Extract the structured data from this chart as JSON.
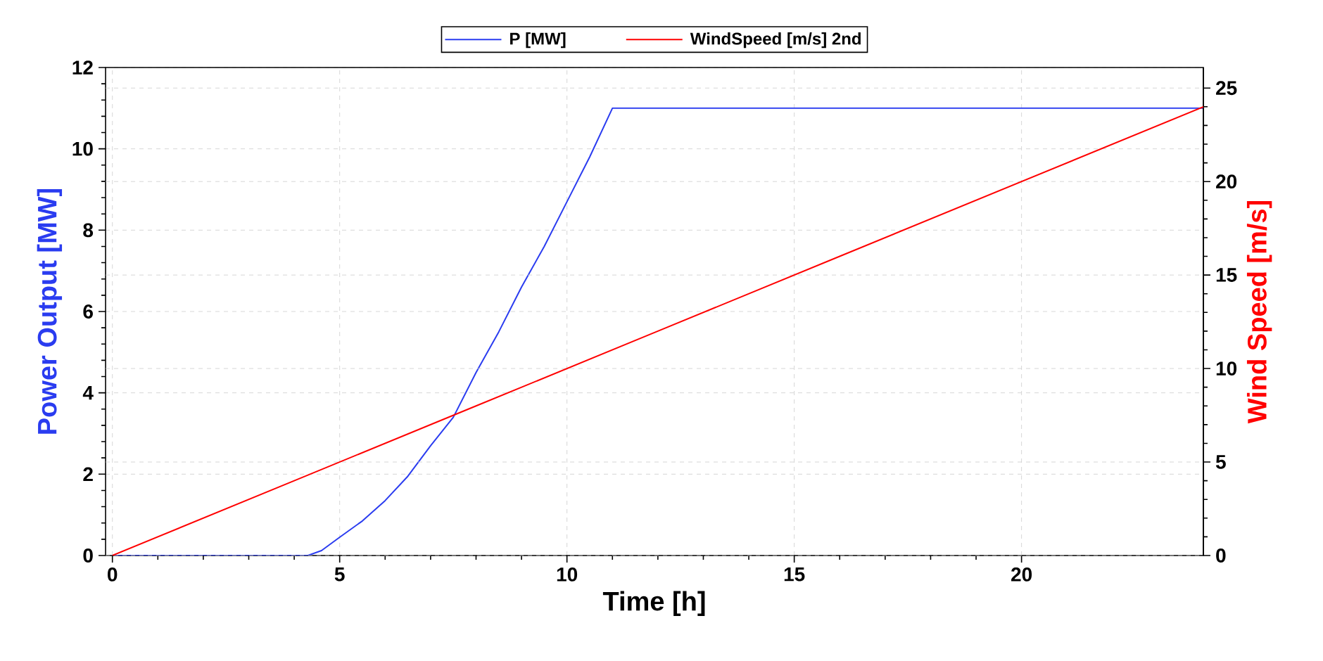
{
  "chart_data": {
    "type": "line",
    "xlabel": "Time [h]",
    "ylabel": "Power Output [MW]",
    "y2label": "Wind Speed [m/s]",
    "xlim": [
      -0.15,
      24
    ],
    "xticks": [
      0,
      5,
      10,
      15,
      20
    ],
    "ylim": [
      0,
      12
    ],
    "yticks": [
      0,
      2,
      4,
      6,
      8,
      10,
      12
    ],
    "y2lim": [
      0,
      26.1
    ],
    "y2ticks": [
      0,
      5,
      10,
      15,
      20,
      25
    ],
    "grid": true,
    "legend": "top",
    "marker": "none",
    "line_style": "solid",
    "series": [
      {
        "name": "P [MW]",
        "color": "#2a3cf0",
        "x": [
          0,
          4.3,
          4.6,
          5,
          5.5,
          6,
          6.5,
          7,
          7.5,
          8,
          8.5,
          9,
          9.5,
          10,
          10.5,
          11,
          24
        ],
        "values": [
          0,
          0,
          0.12,
          0.45,
          0.85,
          1.35,
          1.95,
          2.7,
          3.4,
          4.5,
          5.5,
          6.6,
          7.6,
          8.7,
          9.8,
          11,
          11
        ]
      },
      {
        "name": "WindSpeed [m/s] 2nd",
        "color": "#ff0000",
        "axis": "y2",
        "x": [
          0,
          4,
          8,
          12,
          16,
          20,
          24
        ],
        "values": [
          0,
          4,
          8,
          12,
          16,
          20,
          24
        ]
      }
    ]
  }
}
